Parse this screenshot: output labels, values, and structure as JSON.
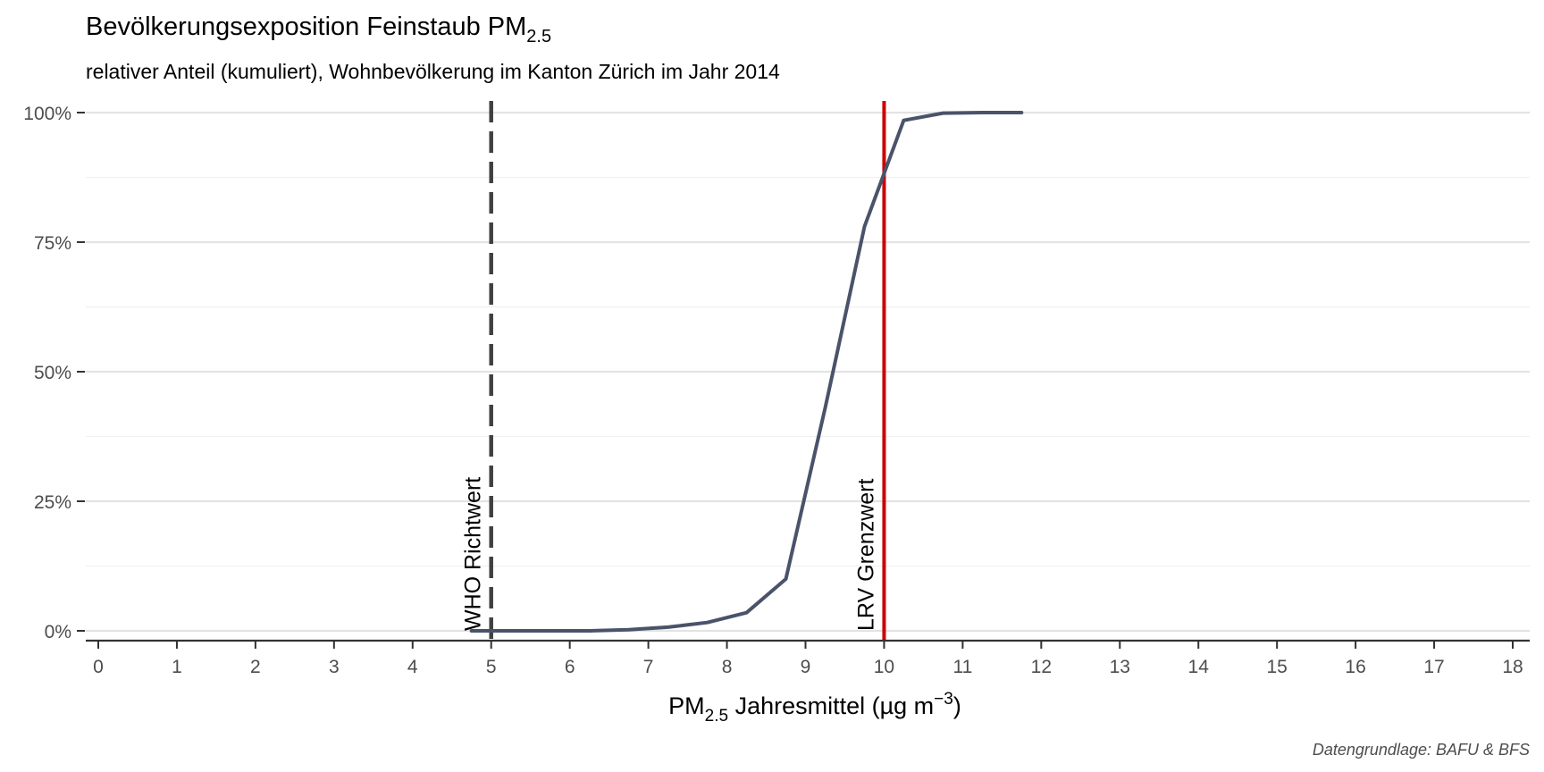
{
  "chart_data": {
    "type": "line",
    "title": "Bevölkerungsexposition Feinstaub PM",
    "title_sub": "2.5",
    "subtitle": "relativer Anteil (kumuliert), Wohnbevölkerung im Kanton Zürich im Jahr 2014",
    "xlabel": {
      "pre": "PM",
      "sub": "2.5",
      "mid": " Jahresmittel (µg m",
      "sup": "−3",
      "post": ")"
    },
    "ylabel": "",
    "xlim": [
      0,
      18
    ],
    "ylim": [
      0,
      1
    ],
    "x_ticks": [
      0,
      1,
      2,
      3,
      4,
      5,
      6,
      7,
      8,
      9,
      10,
      11,
      12,
      13,
      14,
      15,
      16,
      17,
      18
    ],
    "y_ticks": [
      0,
      0.25,
      0.5,
      0.75,
      1.0
    ],
    "y_tick_labels": [
      "0%",
      "25%",
      "50%",
      "75%",
      "100%"
    ],
    "grid": true,
    "series": [
      {
        "color": "#4a5369",
        "x": [
          4.75,
          5.25,
          5.75,
          6.25,
          6.75,
          7.25,
          7.75,
          8.25,
          8.75,
          9.25,
          9.75,
          10.25,
          10.75,
          11.25,
          11.75
        ],
        "y": [
          0.0,
          0.0,
          0.0,
          0.0,
          0.002,
          0.007,
          0.016,
          0.035,
          0.1,
          0.43,
          0.78,
          0.985,
          0.999,
          1.0,
          1.0
        ]
      }
    ],
    "reference_lines": [
      {
        "x": 5,
        "label": "WHO Richtwert",
        "style": "dashed",
        "color": "#404040"
      },
      {
        "x": 10,
        "label": "LRV Grenzwert",
        "style": "solid",
        "color": "#cc0000"
      }
    ],
    "caption": "Datengrundlage: BAFU & BFS"
  }
}
